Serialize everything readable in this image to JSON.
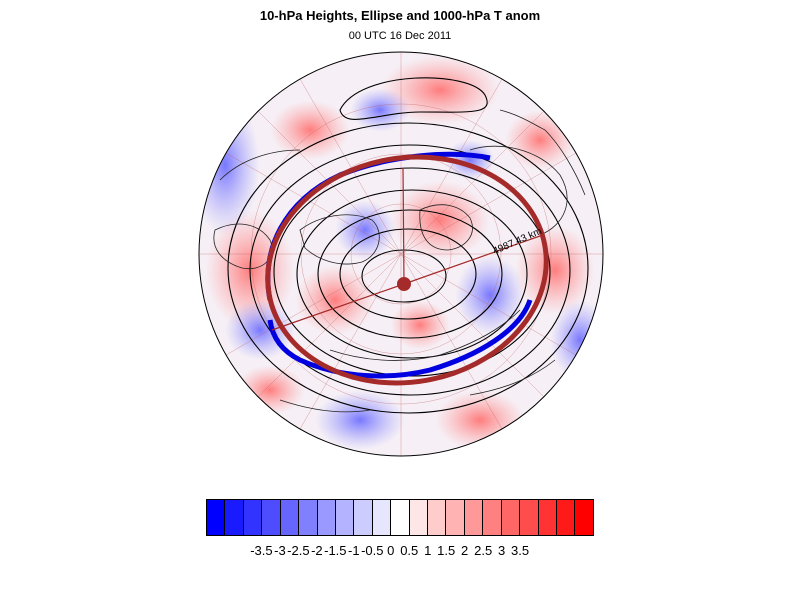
{
  "title": "10-hPa Heights, Ellipse and 1000-hPa T anom",
  "subtitle": "00 UTC 16 Dec 2011",
  "map": {
    "projection": "polar stereographic, north pole",
    "ellipse_color": "#a52a2a",
    "contour_color": "#000000",
    "edge_contour_color": "#0000e0",
    "annotation": "4987.43 km"
  },
  "colorbar": {
    "colors": [
      "#0000ff",
      "#1a1aff",
      "#3333ff",
      "#4d4dff",
      "#6666ff",
      "#8080ff",
      "#9999ff",
      "#b3b3ff",
      "#ccccff",
      "#e6e6ff",
      "#ffffff",
      "#ffe6e6",
      "#ffcccc",
      "#ffb3b3",
      "#ff9999",
      "#ff8080",
      "#ff6666",
      "#ff4d4d",
      "#ff3333",
      "#ff1a1a",
      "#ff0000"
    ],
    "tick_labels": [
      "-3.5",
      "-3",
      "-2.5",
      "-2",
      "-1.5",
      "-1",
      "-0.5",
      "0",
      "0.5",
      "1",
      "1.5",
      "2",
      "2.5",
      "3",
      "3.5"
    ]
  }
}
